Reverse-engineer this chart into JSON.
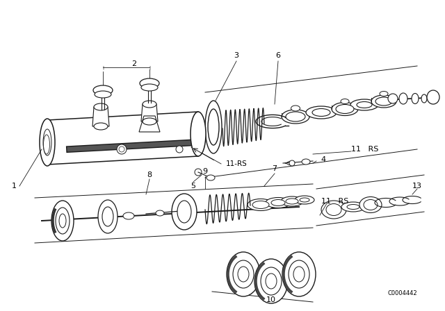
{
  "bg_color": "#ffffff",
  "line_color": "#1a1a1a",
  "fig_width": 6.4,
  "fig_height": 4.48,
  "dpi": 100,
  "watermark": "C0004442",
  "label_1": "1",
  "label_2": "2",
  "label_3": "3",
  "label_4": "4",
  "label_5": "5",
  "label_6": "6",
  "label_7": "7",
  "label_8": "8",
  "label_9": "9",
  "label_10": "10",
  "label_11RS_top": "11   RS",
  "label_11RS_bot": "11   RS",
  "label_11RS_mid": "11-RS",
  "label_13": "13"
}
